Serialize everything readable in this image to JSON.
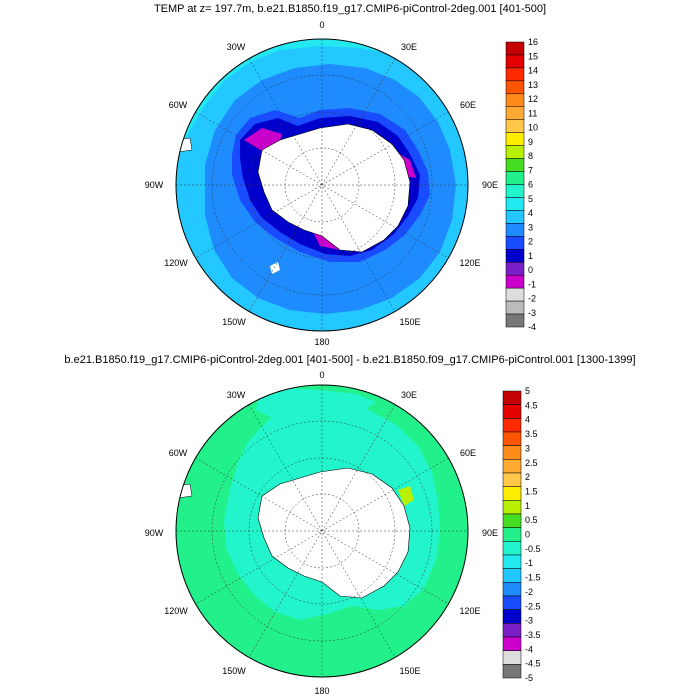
{
  "panel1": {
    "title": "TEMP at z= 197.7m, b.e21.B1850.f19_g17.CMIP6-piControl-2deg.001 [401-500]",
    "lon_labels": [
      "0",
      "30E",
      "60E",
      "90E",
      "120E",
      "150E",
      "180",
      "150W",
      "120W",
      "90W",
      "60W",
      "30W"
    ],
    "colorbar": {
      "labels": [
        "16",
        "15",
        "14",
        "13",
        "12",
        "11",
        "10",
        "9",
        "8",
        "7",
        "6",
        "5",
        "4",
        "3",
        "2",
        "1",
        "0",
        "-1",
        "-2",
        "-3",
        "-4"
      ],
      "colors": [
        "#c40000",
        "#e40000",
        "#ff2a00",
        "#ff5500",
        "#ff8c1a",
        "#ffab33",
        "#ffc847",
        "#ffee00",
        "#b8f000",
        "#44dd22",
        "#22f08a",
        "#22f5cc",
        "#22e8f0",
        "#22c8ff",
        "#1e8cff",
        "#1a4cff",
        "#0000cc",
        "#7a1ec8",
        "#cc00cc",
        "#dddddd",
        "#bbbbbb",
        "#777777"
      ]
    }
  },
  "panel2": {
    "title": "b.e21.B1850.f19_g17.CMIP6-piControl-2deg.001 [401-500] - b.e21.B1850.f09_g17.CMIP6-piControl.001 [1300-1399]",
    "lon_labels": [
      "0",
      "30E",
      "60E",
      "90E",
      "120E",
      "150E",
      "180",
      "150W",
      "120W",
      "90W",
      "60W",
      "30W"
    ],
    "colorbar": {
      "labels": [
        "5",
        "4.5",
        "4",
        "3.5",
        "3",
        "2.5",
        "2",
        "1.5",
        "1",
        "0.5",
        "0",
        "-0.5",
        "-1",
        "-1.5",
        "-2",
        "-2.5",
        "-3",
        "-3.5",
        "-4",
        "-4.5",
        "-5"
      ],
      "colors": [
        "#c40000",
        "#e40000",
        "#ff2a00",
        "#ff5500",
        "#ff8c1a",
        "#ffab33",
        "#ffc847",
        "#ffee00",
        "#b8f000",
        "#44dd22",
        "#22f08a",
        "#22f5cc",
        "#22e8f0",
        "#22c8ff",
        "#1e8cff",
        "#1a4cff",
        "#0000cc",
        "#7a1ec8",
        "#cc00cc",
        "#dddddd",
        "#777777"
      ]
    }
  }
}
